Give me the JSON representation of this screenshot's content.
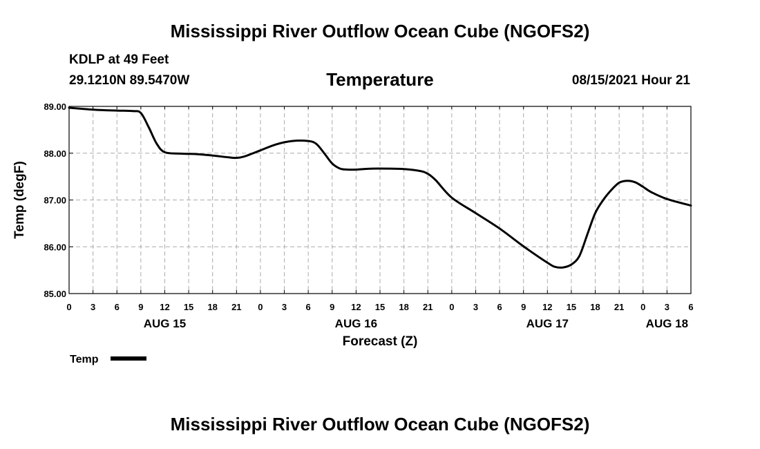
{
  "header": {
    "title": "Mississippi River Outflow Ocean Cube (NGOFS2)",
    "station": "KDLP at 49 Feet",
    "coords": "29.1210N  89.5470W",
    "datetime": "08/15/2021 Hour 21"
  },
  "footer": {
    "title": "Mississippi River Outflow Ocean Cube (NGOFS2)"
  },
  "chart_data": {
    "type": "line",
    "title": "Temperature",
    "xlabel": "Forecast (Z)",
    "ylabel": "Temp (degF)",
    "ylim": [
      85.0,
      89.0
    ],
    "xlim": [
      0,
      78
    ],
    "grid": true,
    "y_ticks": [
      "85.00",
      "86.00",
      "87.00",
      "88.00",
      "89.00"
    ],
    "y_tick_values": [
      85.0,
      86.0,
      87.0,
      88.0,
      89.0
    ],
    "x_tick_hours": [
      0,
      3,
      6,
      9,
      12,
      15,
      18,
      21,
      24,
      27,
      30,
      33,
      36,
      39,
      42,
      45,
      48,
      51,
      54,
      57,
      60,
      63,
      66,
      69,
      72,
      75,
      78
    ],
    "x_tick_labels": [
      "0",
      "3",
      "6",
      "9",
      "12",
      "15",
      "18",
      "21",
      "0",
      "3",
      "6",
      "9",
      "12",
      "15",
      "18",
      "21",
      "0",
      "3",
      "6",
      "9",
      "12",
      "15",
      "18",
      "21",
      "0",
      "3",
      "6"
    ],
    "date_labels": [
      {
        "label": "AUG 15",
        "hour": 12
      },
      {
        "label": "AUG 16",
        "hour": 36
      },
      {
        "label": "AUG 17",
        "hour": 60
      },
      {
        "label": "AUG 18",
        "hour": 75
      }
    ],
    "legend": "bottom-left",
    "series": [
      {
        "name": "Temp",
        "x": [
          0,
          3,
          6,
          8,
          9,
          10,
          11,
          12,
          14,
          16,
          18,
          20,
          21,
          22,
          24,
          26,
          28,
          30,
          31,
          32,
          33,
          34,
          35,
          36,
          38,
          40,
          42,
          44,
          45,
          46,
          48,
          51,
          54,
          57,
          60,
          61,
          62,
          63,
          64,
          65,
          66,
          67,
          68,
          69,
          70,
          71,
          72,
          73,
          75,
          78
        ],
        "values": [
          88.97,
          88.93,
          88.91,
          88.9,
          88.86,
          88.55,
          88.2,
          88.02,
          87.99,
          87.98,
          87.95,
          87.91,
          87.9,
          87.93,
          88.06,
          88.19,
          88.26,
          88.26,
          88.2,
          88.0,
          87.78,
          87.67,
          87.65,
          87.65,
          87.67,
          87.67,
          87.66,
          87.62,
          87.56,
          87.42,
          87.05,
          86.72,
          86.39,
          86.01,
          85.66,
          85.57,
          85.56,
          85.62,
          85.8,
          86.26,
          86.72,
          87.0,
          87.21,
          87.37,
          87.41,
          87.38,
          87.28,
          87.17,
          87.02,
          86.88
        ]
      }
    ]
  }
}
